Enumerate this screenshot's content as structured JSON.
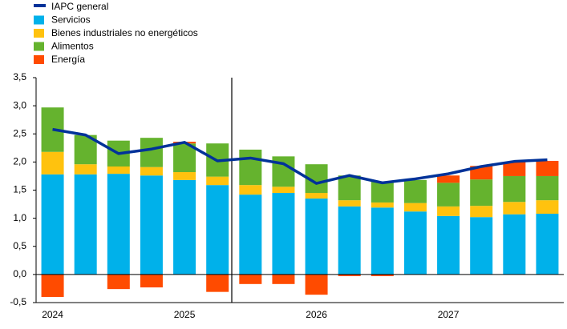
{
  "chart_data": {
    "type": "bar",
    "stacked": true,
    "categories": [
      "2024",
      null,
      null,
      null,
      "2025",
      null,
      null,
      null,
      "2026",
      null,
      null,
      null,
      "2027",
      null,
      null,
      null
    ],
    "series": [
      {
        "name": "IAPC general",
        "type": "line",
        "color": "#003299",
        "values": [
          2.58,
          2.48,
          2.15,
          2.23,
          2.35,
          2.02,
          2.07,
          1.97,
          1.62,
          1.76,
          1.63,
          1.7,
          1.79,
          1.92,
          2.01,
          2.04
        ]
      },
      {
        "name": "Servicios",
        "color": "#00b1ea",
        "values": [
          1.78,
          1.78,
          1.79,
          1.76,
          1.68,
          1.59,
          1.42,
          1.45,
          1.35,
          1.21,
          1.19,
          1.12,
          1.04,
          1.02,
          1.07,
          1.08
        ]
      },
      {
        "name": "Bienes industriales no energéticos",
        "color": "#ffc20e",
        "values": [
          0.4,
          0.18,
          0.13,
          0.15,
          0.14,
          0.15,
          0.17,
          0.11,
          0.1,
          0.11,
          0.09,
          0.15,
          0.17,
          0.2,
          0.22,
          0.24
        ]
      },
      {
        "name": "Alimentos",
        "color": "#65b32e",
        "values": [
          0.79,
          0.52,
          0.46,
          0.52,
          0.51,
          0.59,
          0.63,
          0.54,
          0.51,
          0.44,
          0.37,
          0.41,
          0.42,
          0.47,
          0.46,
          0.43
        ]
      },
      {
        "name": "Energía",
        "color": "#ff4b00",
        "values": [
          -0.4,
          0,
          -0.26,
          -0.23,
          0.03,
          -0.31,
          -0.17,
          -0.17,
          -0.36,
          -0.03,
          -0.03,
          0,
          0.13,
          0.24,
          0.25,
          0.27
        ]
      }
    ],
    "ylim": [
      -0.5,
      3.5
    ],
    "yticks": [
      {
        "value": -0.5,
        "label": "-0,5"
      },
      {
        "value": 0,
        "label": "0,0"
      },
      {
        "value": 0.5,
        "label": "0,5"
      },
      {
        "value": 1,
        "label": "1,0"
      },
      {
        "value": 1.5,
        "label": "1,5"
      },
      {
        "value": 2,
        "label": "2,0"
      },
      {
        "value": 2.5,
        "label": "2,5"
      },
      {
        "value": 3,
        "label": "3,0"
      },
      {
        "value": 3.5,
        "label": "3,5"
      }
    ]
  }
}
